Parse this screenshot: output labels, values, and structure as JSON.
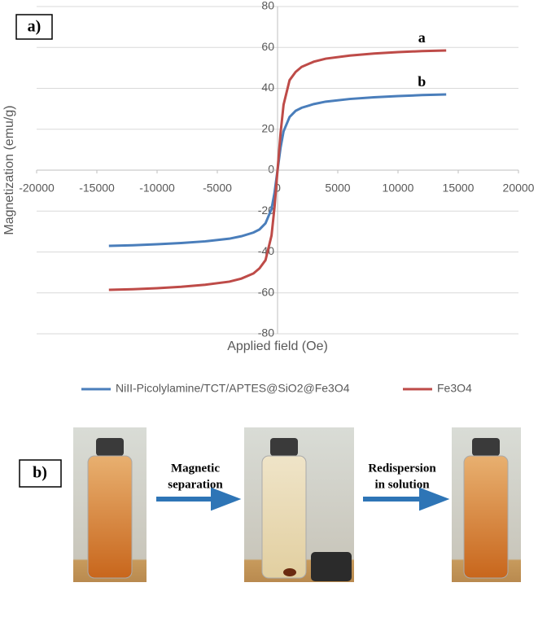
{
  "chart_data": {
    "type": "line",
    "x_label": "Applied field (Oe)",
    "y_label": "Magnetization (emu/g)",
    "x": [
      -14000,
      -12000,
      -10000,
      -8000,
      -6000,
      -4000,
      -3000,
      -2000,
      -1500,
      -1000,
      -500,
      -250,
      0,
      250,
      500,
      1000,
      1500,
      2000,
      3000,
      4000,
      6000,
      8000,
      10000,
      12000,
      14000
    ],
    "series": [
      {
        "name": "NiII-Picolylamine/TCT/APTES@SiO2@Fe3O4",
        "color": "#4a7ebb",
        "values": [
          -37,
          -36.7,
          -36.2,
          -35.6,
          -34.8,
          -33.5,
          -32.3,
          -30.5,
          -29,
          -26,
          -19,
          -11,
          0,
          11,
          19,
          26,
          29,
          30.5,
          32.3,
          33.5,
          34.8,
          35.6,
          36.2,
          36.7,
          37
        ]
      },
      {
        "name": "Fe3O4",
        "color": "#be4b48",
        "values": [
          -58.5,
          -58.2,
          -57.7,
          -57,
          -56,
          -54.5,
          -53,
          -50.5,
          -48,
          -44,
          -32,
          -18,
          0,
          18,
          32,
          44,
          48,
          50.5,
          53,
          54.5,
          56,
          57,
          57.7,
          58.2,
          58.5
        ]
      }
    ],
    "xlim": [
      -20000,
      20000
    ],
    "ylim": [
      -80,
      80
    ],
    "xticks": [
      -20000,
      -15000,
      -10000,
      -5000,
      0,
      5000,
      10000,
      15000,
      20000
    ],
    "yticks": [
      -80,
      -60,
      -40,
      -20,
      0,
      20,
      40,
      60,
      80
    ],
    "grid": true,
    "legend": "bottom",
    "annotations": [
      "a",
      "b"
    ],
    "panel_label": "a)"
  },
  "panel_b": {
    "label": "b)",
    "steps": [
      [
        "Magnetic",
        "separation"
      ],
      [
        "Redispersion",
        "in solution"
      ]
    ]
  }
}
